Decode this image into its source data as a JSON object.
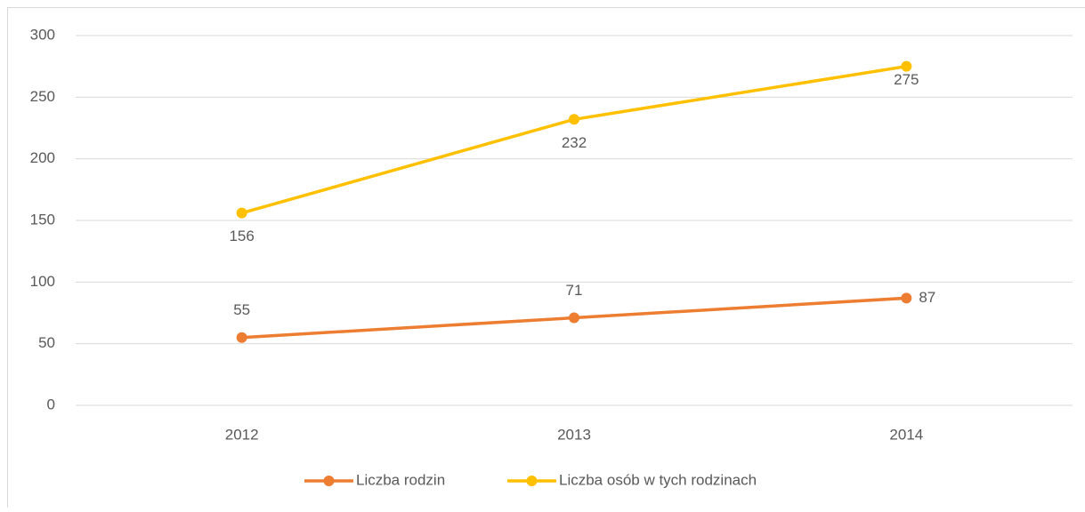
{
  "chart_data": {
    "type": "line",
    "categories": [
      "2012",
      "2013",
      "2014"
    ],
    "series": [
      {
        "name": "Liczba rodzin",
        "color": "#ED7D31",
        "values": [
          55,
          71,
          87
        ]
      },
      {
        "name": "Liczba osób w tych rodzinach",
        "color": "#FFC000",
        "values": [
          156,
          232,
          275
        ]
      }
    ],
    "ylim": [
      0,
      300
    ],
    "yticks": [
      0,
      50,
      100,
      150,
      200,
      250,
      300
    ],
    "grid": true,
    "legend": "bottom"
  }
}
